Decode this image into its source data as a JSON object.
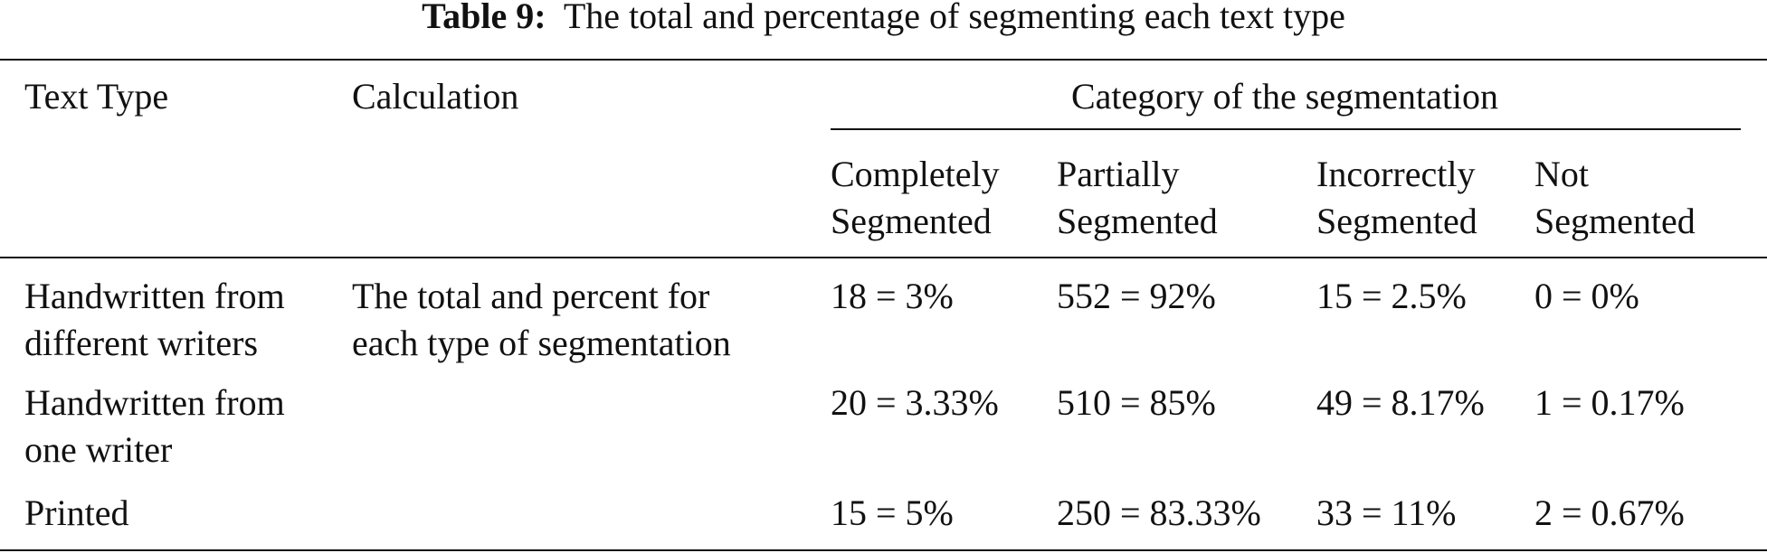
{
  "title": {
    "label": "Table 9:",
    "text": "The total and percentage of segmenting each text type"
  },
  "table": {
    "header": {
      "text_type": "Text Type",
      "calculation": "Calculation",
      "category": "Category of the segmentation",
      "subcolumns": [
        [
          "Completely",
          "Segmented"
        ],
        [
          "Partially",
          "Segmented"
        ],
        [
          "Incorrectly",
          "Segmented"
        ],
        [
          "Not",
          "Segmented"
        ]
      ]
    },
    "rows": [
      {
        "text_type": [
          "Handwritten from",
          "different writers"
        ],
        "calculation": [
          "The total and percent for",
          "each type of segmentation"
        ],
        "values": [
          "18 = 3%",
          "552 = 92%",
          "15 = 2.5%",
          "0 = 0%"
        ]
      },
      {
        "text_type": [
          "Handwritten from",
          "one writer"
        ],
        "values": [
          "20 = 3.33%",
          "510 = 85%",
          "49 = 8.17%",
          "1 = 0.17%"
        ]
      },
      {
        "text_type": [
          "Printed"
        ],
        "values": [
          "15 = 5%",
          "250 = 83.33%",
          "33 = 11%",
          "2 = 0.67%"
        ]
      }
    ]
  }
}
